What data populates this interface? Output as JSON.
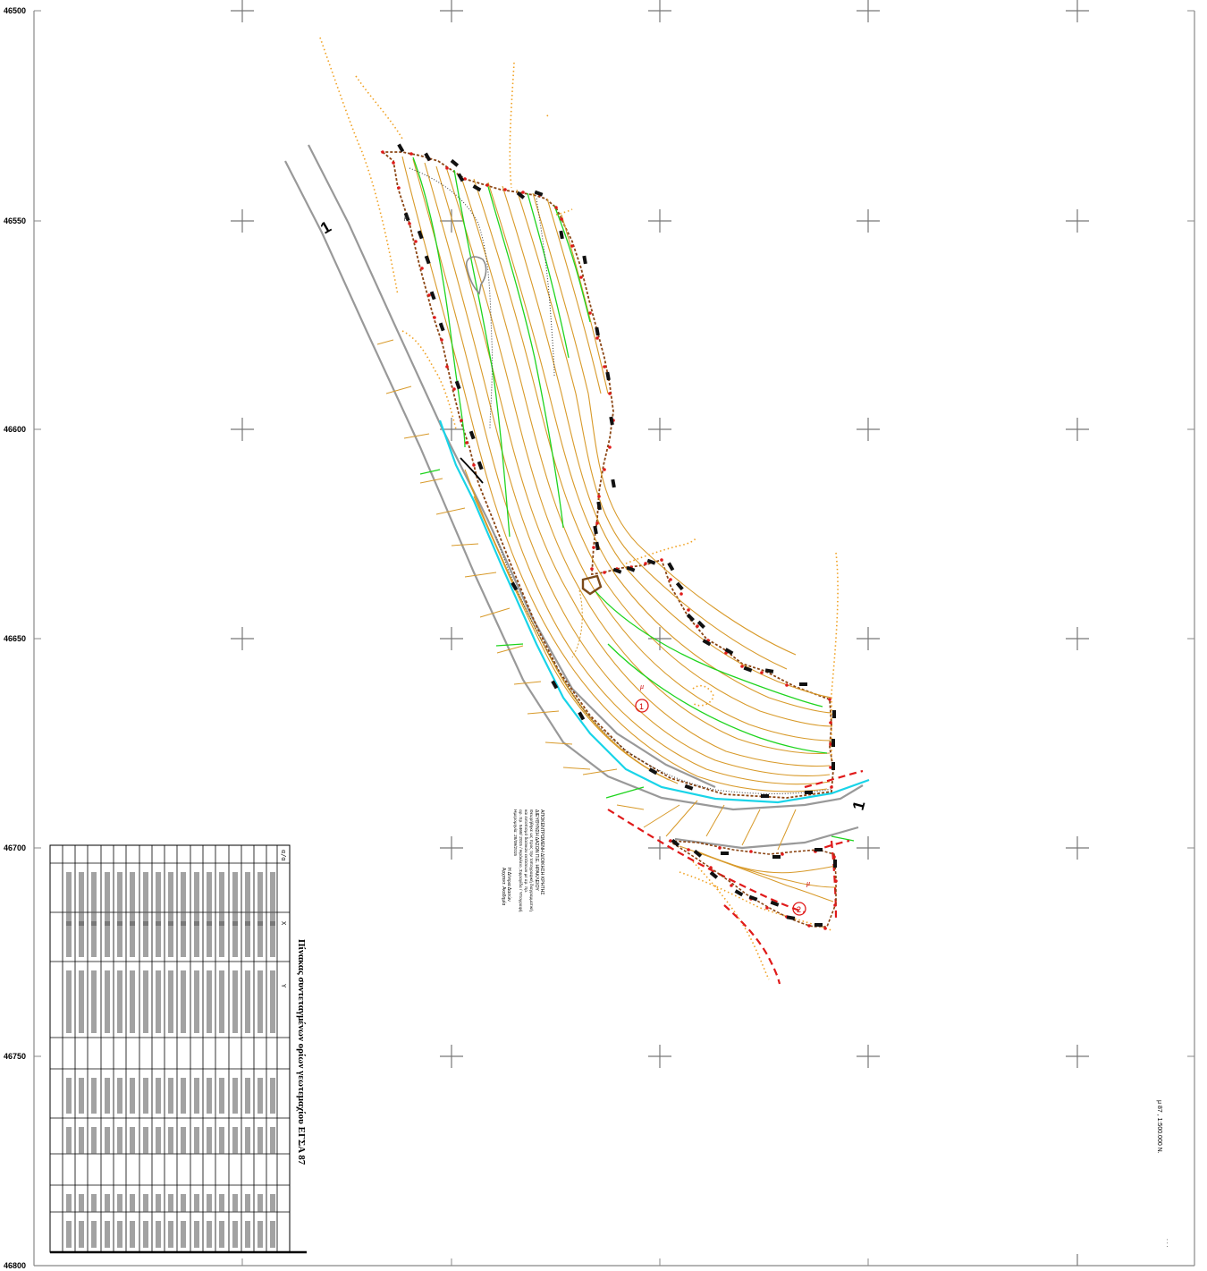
{
  "grid": {
    "y_labels": [
      "46500",
      "46550",
      "46600",
      "46650",
      "46700",
      "46750",
      "46800"
    ]
  },
  "parcels": [
    {
      "id": "1",
      "mu_label": "μ"
    },
    {
      "id": "2",
      "mu_label": "μ"
    }
  ],
  "markers": {
    "arrow_1": "1",
    "arrow_2": "1",
    "mu_small": "μ"
  },
  "title_block": {
    "lines": [
      "ΑΠΟΚΕΝΤΡΩΜΕΝΗ ΔΙΟΙΚΗΣΗ ΚΡΗΤΗΣ",
      "ΔΙΕΥΘΥΝΣΗ ΔΑΣΩΝ Π.Ε. ΗΡΑΚΛΕΙΟΥ",
      "Θεωρήθηκε ως προς την τοπογραφική διαγραμματική",
      "και εντοπισμό δασικών εκτάσεων με αρ. πρ.",
      "αρ. πρ. 5468/ 2015 / Ηράκλειο, Σφραγίδα / Υπογραφή",
      "Ημερομηνία: 28/09/2015"
    ],
    "signature_lines": [
      "Η Δ/ντρια Δασών",
      "Αρχιτεκτ. Ακαδημία"
    ]
  },
  "coord_table": {
    "title": "Πίνακας συντεταγμένων ορίων γεωτεμαχίου ΕΓΣΑ 87",
    "columns": [
      "α/α",
      "X",
      "Y"
    ]
  },
  "scale_note": {
    "text": "μ  87  ,  1:500.000 Ν."
  }
}
